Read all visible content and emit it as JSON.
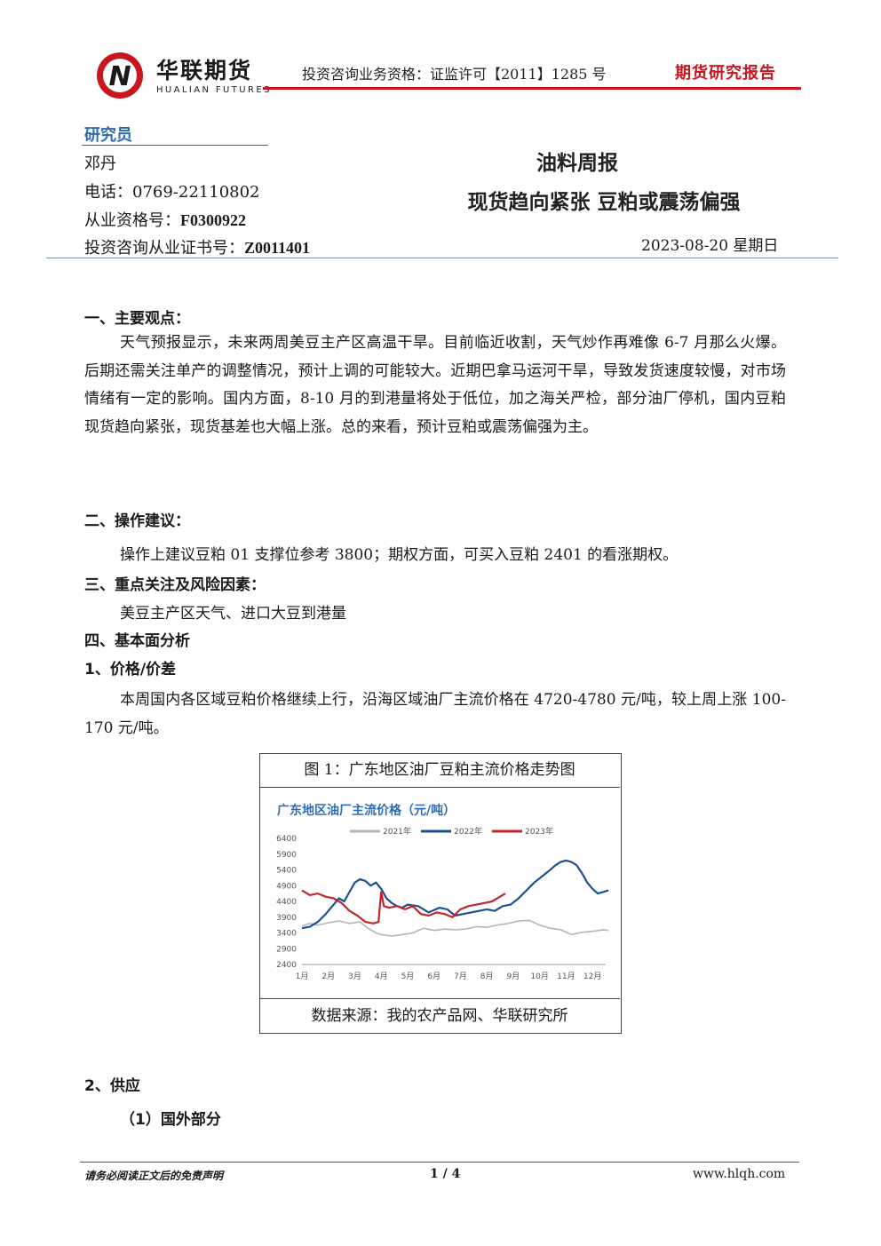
{
  "header": {
    "brand_cn": "华联期货",
    "brand_en": "HUALIAN FUTURES",
    "license": "投资咨询业务资格：证监许可【2011】1285 号",
    "report_type": "期货研究报告",
    "logo_letter": "N",
    "colors": {
      "brand_red": "#c9151e",
      "accent_blue": "#2e6bb3"
    }
  },
  "researcher": {
    "heading": "研究员",
    "name": "邓丹",
    "phone_label": "电话：",
    "phone": "0769-22110802",
    "cert_label": "从业资格号：",
    "cert": "F0300922",
    "advisory_label": "投资咨询从业证书号：",
    "advisory": "Z0011401"
  },
  "report": {
    "title": "油料周报",
    "subtitle": "现货趋向紧张  豆粕或震荡偏强",
    "date": "2023-08-20 星期日"
  },
  "sections": {
    "s1_heading": "一、主要观点：",
    "s1_text": "天气预报显示，未来两周美豆主产区高温干旱。目前临近收割，天气炒作再难像 6-7 月那么火爆。后期还需关注单产的调整情况，预计上调的可能较大。近期巴拿马运河干旱，导致发货速度较慢，对市场情绪有一定的影响。国内方面，8-10 月的到港量将处于低位，加之海关严检，部分油厂停机，国内豆粕现货趋向紧张，现货基差也大幅上涨。总的来看，预计豆粕或震荡偏强为主。",
    "s2_heading": "二、操作建议：",
    "s2_text": "操作上建议豆粕 01 支撑位参考 3800；期权方面，可买入豆粕 2401 的看涨期权。",
    "s3_heading": "三、重点关注及风险因素：",
    "s3_text": "美豆主产区天气、进口大豆到港量",
    "s4_heading": "四、基本面分析",
    "s4_1_heading": "1、价格/价差",
    "s4_1_text": "本周国内各区域豆粕价格继续上行，沿海区域油厂主流价格在 4720-4780 元/吨，较上周上涨 100-170 元/吨。",
    "s4_2_heading": "2、供应",
    "s4_2_1_heading": "（1）国外部分"
  },
  "figure": {
    "caption": "图 1：广东地区油厂豆粕主流价格走势图",
    "source": "数据来源：我的农产品网、华联研究所"
  },
  "chart_data": {
    "type": "line",
    "title": "广东地区油厂主流价格（元/吨）",
    "categories": [
      "1月",
      "2月",
      "3月",
      "4月",
      "5月",
      "6月",
      "7月",
      "8月",
      "9月",
      "10月",
      "11月",
      "12月"
    ],
    "ylim": [
      2400,
      6400
    ],
    "yticks": [
      2400,
      2900,
      3400,
      3900,
      4400,
      4900,
      5400,
      5900,
      6400
    ],
    "legend_position": "top",
    "grid": false,
    "series": [
      {
        "name": "2021年",
        "color": "#b5b5b5",
        "x": [
          0,
          0.3,
          0.6,
          1.0,
          1.4,
          1.8,
          2.2,
          2.5,
          2.8,
          3.0,
          3.4,
          3.8,
          4.2,
          4.6,
          5.0,
          5.4,
          5.8,
          6.2,
          6.6,
          7.0,
          7.4,
          7.8,
          8.2,
          8.6,
          9.0,
          9.4,
          9.8,
          10.2,
          10.6,
          11.0,
          11.4,
          11.6
        ],
        "values": [
          3620,
          3700,
          3650,
          3720,
          3780,
          3700,
          3750,
          3550,
          3400,
          3350,
          3300,
          3350,
          3400,
          3550,
          3480,
          3520,
          3500,
          3520,
          3600,
          3580,
          3650,
          3700,
          3780,
          3800,
          3650,
          3550,
          3500,
          3350,
          3420,
          3450,
          3500,
          3480
        ]
      },
      {
        "name": "2022年",
        "color": "#1f4f93",
        "x": [
          0,
          0.3,
          0.6,
          0.9,
          1.2,
          1.4,
          1.6,
          1.8,
          2.0,
          2.2,
          2.4,
          2.6,
          2.8,
          3.0,
          3.2,
          3.4,
          3.6,
          3.8,
          4.0,
          4.4,
          4.8,
          5.2,
          5.5,
          5.8,
          6.1,
          6.4,
          6.7,
          7.0,
          7.3,
          7.6,
          7.9,
          8.2,
          8.5,
          8.8,
          9.1,
          9.4,
          9.6,
          9.8,
          10.0,
          10.2,
          10.4,
          10.6,
          10.8,
          11.0,
          11.2,
          11.4,
          11.6
        ],
        "values": [
          3550,
          3600,
          3750,
          4000,
          4300,
          4500,
          4400,
          4700,
          5000,
          5100,
          5050,
          4900,
          5000,
          4800,
          4500,
          4350,
          4250,
          4200,
          4300,
          4250,
          4050,
          4200,
          4150,
          3950,
          4000,
          4050,
          4100,
          4150,
          4100,
          4250,
          4300,
          4500,
          4750,
          5000,
          5200,
          5400,
          5550,
          5650,
          5700,
          5650,
          5550,
          5300,
          5000,
          4800,
          4650,
          4700,
          4750
        ]
      },
      {
        "name": "2023年",
        "color": "#c0262e",
        "x": [
          0,
          0.3,
          0.6,
          0.9,
          1.2,
          1.5,
          1.8,
          2.1,
          2.4,
          2.7,
          2.9,
          3.0,
          3.1,
          3.3,
          3.6,
          3.9,
          4.2,
          4.5,
          4.8,
          5.1,
          5.4,
          5.7,
          6.0,
          6.3,
          6.6,
          6.9,
          7.2,
          7.5,
          7.7
        ],
        "values": [
          4750,
          4600,
          4650,
          4550,
          4500,
          4350,
          4100,
          3950,
          3750,
          3700,
          3750,
          4700,
          4250,
          4200,
          4250,
          4150,
          4250,
          4000,
          3950,
          4050,
          4000,
          3900,
          4150,
          4250,
          4300,
          4350,
          4400,
          4550,
          4650
        ]
      }
    ]
  }
}
